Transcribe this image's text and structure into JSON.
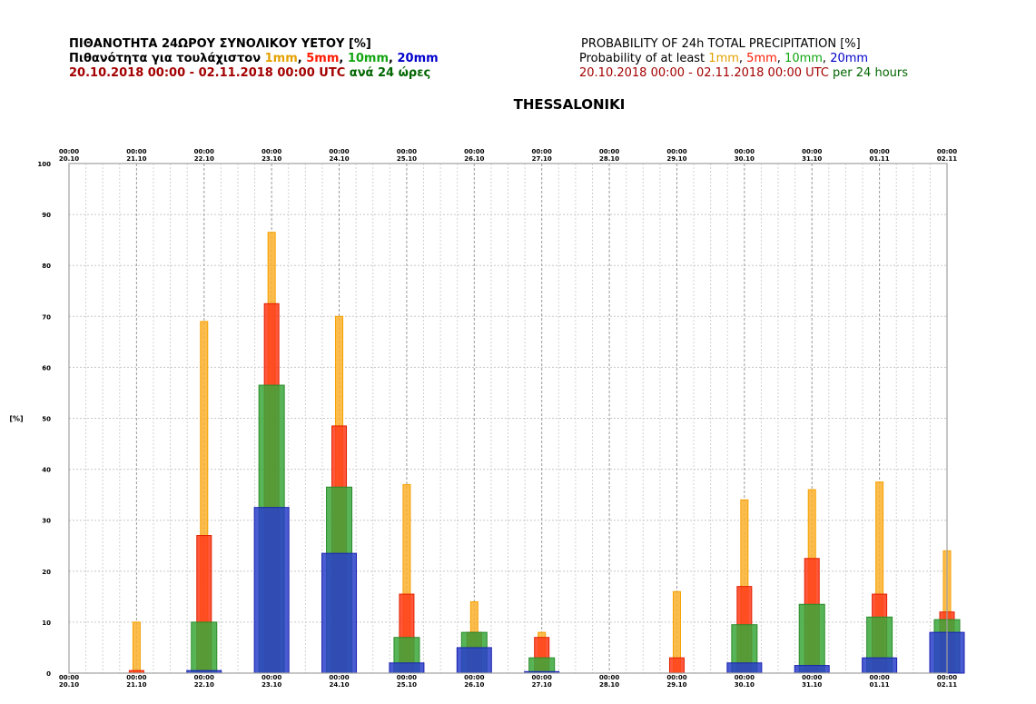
{
  "header": {
    "gr_title": "ΠΙΘΑΝΟΤΗΤΑ 24ΩΡΟΥ ΣΥΝΟΛΙΚΟΥ ΥΕΤΟΥ [%]",
    "gr_sub_prefix": "Πιθανότητα για τουλάχιστον ",
    "gr_period": "20.10.2018 00:00 - 02.11.2018 00:00 UTC",
    "gr_every": " ανά 24 ώρες",
    "en_title": "PROBABILITY OF 24h TOTAL PRECIPITATION [%]",
    "en_sub_prefix": "Probability of at least ",
    "en_period": "20.10.2018 00:00 - 02.11.2018 00:00 UTC",
    "en_every": " per 24 hours",
    "thr1": "1mm",
    "thr2": "5mm",
    "thr3": "10mm",
    "thr4": "20mm",
    "sep": ", "
  },
  "station": "THESSALONIKI",
  "colors": {
    "t1": "#fbb12e",
    "t5": "#ff3b1a",
    "t10": "#3aa83a",
    "t20": "#2a3fc9"
  },
  "chart_data": {
    "type": "bar",
    "ylabel": "[%]",
    "ylim": [
      0,
      100
    ],
    "yticks": [
      0,
      10,
      20,
      30,
      40,
      50,
      60,
      70,
      80,
      90,
      100
    ],
    "grid": true,
    "x_ticks": [
      {
        "time": "00:00",
        "date": "20.10"
      },
      {
        "time": "00:00",
        "date": "21.10"
      },
      {
        "time": "00:00",
        "date": "22.10"
      },
      {
        "time": "00:00",
        "date": "23.10"
      },
      {
        "time": "00:00",
        "date": "24.10"
      },
      {
        "time": "00:00",
        "date": "25.10"
      },
      {
        "time": "00:00",
        "date": "26.10"
      },
      {
        "time": "00:00",
        "date": "27.10"
      },
      {
        "time": "00:00",
        "date": "28.10"
      },
      {
        "time": "00:00",
        "date": "29.10"
      },
      {
        "time": "00:00",
        "date": "30.10"
      },
      {
        "time": "00:00",
        "date": "31.10"
      },
      {
        "time": "00:00",
        "date": "01.11"
      },
      {
        "time": "00:00",
        "date": "02.11"
      }
    ],
    "categories": [
      "21.10",
      "22.10",
      "23.10",
      "24.10",
      "25.10",
      "26.10",
      "27.10",
      "28.10",
      "29.10",
      "30.10",
      "31.10",
      "01.11",
      "02.11"
    ],
    "series": [
      {
        "name": "1mm",
        "values": [
          10,
          69,
          86.5,
          70,
          37,
          14,
          8,
          0,
          16,
          34,
          36,
          37.5,
          24
        ]
      },
      {
        "name": "5mm",
        "values": [
          0.5,
          27,
          72.5,
          48.5,
          15.5,
          8,
          7,
          0,
          3,
          17,
          22.5,
          15.5,
          12
        ]
      },
      {
        "name": "10mm",
        "values": [
          0,
          10,
          56.5,
          36.5,
          7,
          8,
          3,
          0,
          0,
          9.5,
          13.5,
          11,
          10.5
        ]
      },
      {
        "name": "20mm",
        "values": [
          0,
          0.5,
          32.5,
          23.5,
          2,
          5,
          0.3,
          0,
          0,
          2,
          1.5,
          3,
          8
        ]
      }
    ]
  }
}
